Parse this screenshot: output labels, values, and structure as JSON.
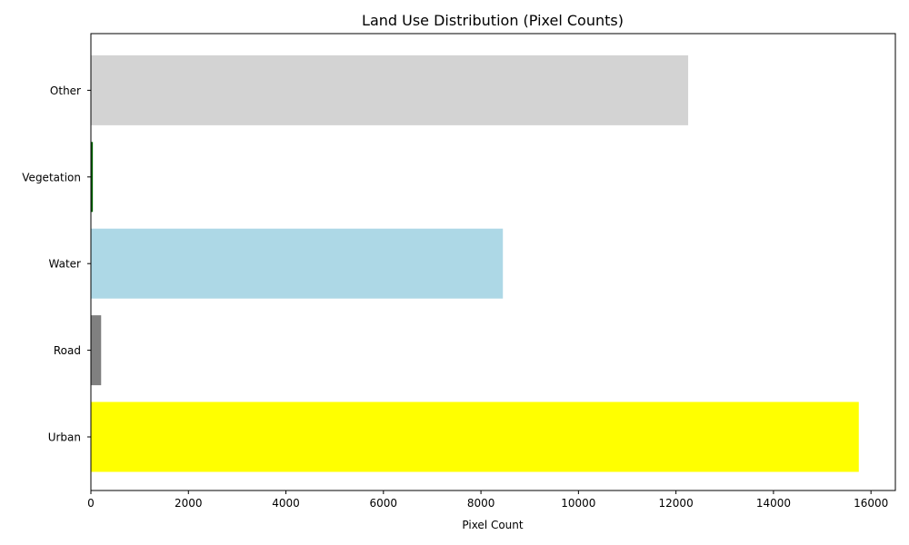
{
  "chart_data": {
    "type": "bar",
    "orientation": "horizontal",
    "title": "Land Use Distribution (Pixel Counts)",
    "xlabel": "Pixel Count",
    "ylabel": "",
    "xlim": [
      0,
      16500
    ],
    "xticks": [
      0,
      2000,
      4000,
      6000,
      8000,
      10000,
      12000,
      14000,
      16000
    ],
    "categories": [
      "Urban",
      "Road",
      "Water",
      "Vegetation",
      "Other"
    ],
    "values": [
      15750,
      210,
      8450,
      40,
      12250
    ],
    "colors": [
      "#ffff00",
      "#808080",
      "#add8e6",
      "#006400",
      "#d3d3d3"
    ],
    "grid": false,
    "legend": "none"
  }
}
